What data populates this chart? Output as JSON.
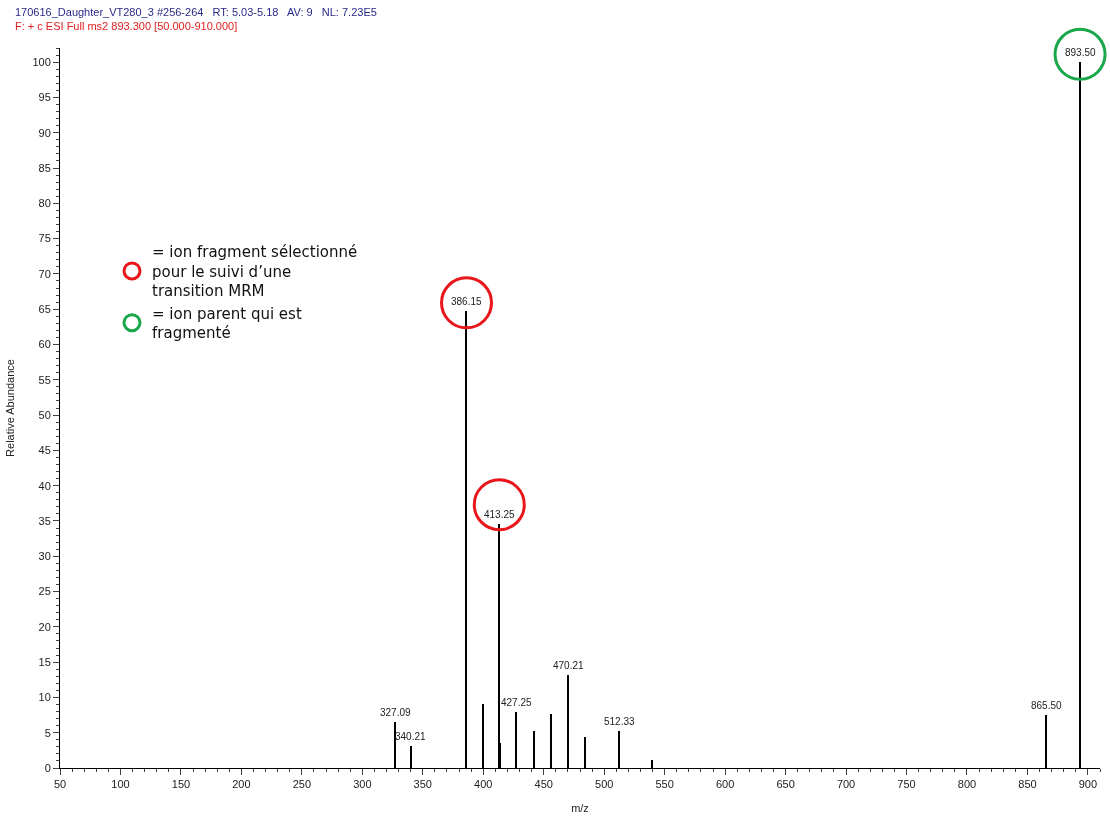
{
  "chart_data": {
    "type": "bar",
    "title": "170616_Daughter_VT280_3 #256-264   RT: 5.03-5.18   AV: 9   NL: 7.23E5",
    "subtitle": "F: + c ESI Full ms2 893.300 [50.000-910.000]",
    "xlabel": "m/z",
    "ylabel": "Relative Abundance",
    "xlim": [
      50,
      910
    ],
    "xticks": [
      50,
      100,
      150,
      200,
      250,
      300,
      350,
      400,
      450,
      500,
      550,
      600,
      650,
      700,
      750,
      800,
      850,
      900
    ],
    "ylim": [
      0,
      102
    ],
    "yticks": [
      0,
      5,
      10,
      15,
      20,
      25,
      30,
      35,
      40,
      45,
      50,
      55,
      60,
      65,
      70,
      75,
      80,
      85,
      90,
      95,
      100
    ],
    "annotations": [
      {
        "text": "327.09",
        "x": 327.09,
        "y": 6.5
      },
      {
        "text": "340.21",
        "x": 340.21,
        "y": 3.1
      },
      {
        "text": "386.15",
        "x": 386.15,
        "y": 64.8
      },
      {
        "text": "413.25",
        "x": 413.25,
        "y": 34.6
      },
      {
        "text": "427.25",
        "x": 427.25,
        "y": 8.0
      },
      {
        "text": "470.21",
        "x": 470.21,
        "y": 13.2
      },
      {
        "text": "512.33",
        "x": 512.33,
        "y": 5.2
      },
      {
        "text": "865.50",
        "x": 865.5,
        "y": 7.5
      },
      {
        "text": "893.50",
        "x": 893.5,
        "y": 100
      }
    ],
    "legend": "top left",
    "marker": "circle",
    "series": [
      {
        "type": "bar",
        "color": "#000000",
        "x": [
          327.09,
          340.21,
          386.15,
          400.0,
          413.25,
          414.2,
          427.25,
          442.1,
          455.9,
          470.21,
          484.4,
          512.33,
          539.7,
          865.5,
          893.5
        ],
        "values": [
          6.5,
          3.1,
          64.8,
          9.0,
          34.6,
          3.5,
          8.0,
          5.3,
          7.7,
          13.2,
          4.4,
          5.2,
          1.1,
          7.5,
          100
        ]
      },
      {
        "type": "scatter",
        "name": "= ion fragment sélectionné\npour le suivi d’une\ntransition MRM",
        "color": "#e8161b",
        "x": [
          386.15,
          413.25
        ],
        "values": [
          65.9,
          37.3
        ]
      },
      {
        "type": "scatter",
        "name": "= ion parent qui est\nfragmenté",
        "color": "#1aa64a",
        "x": [
          893.5
        ],
        "values": [
          101.1
        ]
      }
    ]
  }
}
